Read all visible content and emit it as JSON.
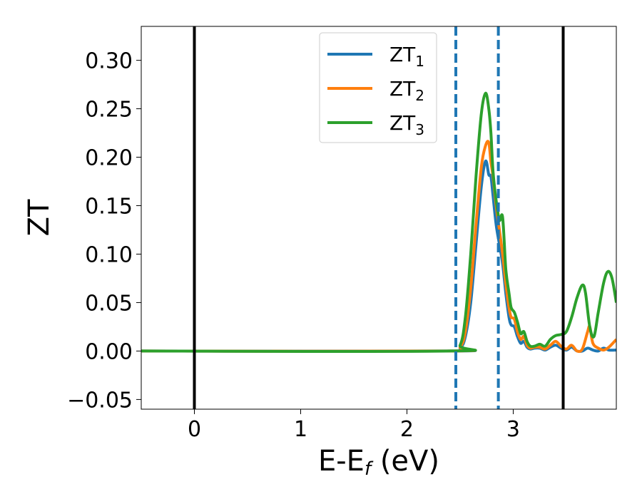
{
  "chart_data": {
    "type": "line",
    "xlabel": "E-E",
    "xlabel_sub": "f",
    "xlabel_unit": " (eV)",
    "ylabel": "ZT",
    "xlim": [
      -0.5,
      3.97
    ],
    "ylim": [
      -0.06,
      0.335
    ],
    "xticks": [
      0,
      1,
      2,
      3
    ],
    "xtick_labels": [
      "0",
      "1",
      "2",
      "3"
    ],
    "yticks": [
      -0.05,
      0.0,
      0.05,
      0.1,
      0.15,
      0.2,
      0.25,
      0.3
    ],
    "ytick_labels": [
      "−0.05",
      "0.00",
      "0.05",
      "0.10",
      "0.15",
      "0.20",
      "0.25",
      "0.30"
    ],
    "grid": false,
    "legend_position": "top-center",
    "vlines": [
      {
        "x": 0.0,
        "style": "solid",
        "color": "#000000"
      },
      {
        "x": 3.47,
        "style": "solid",
        "color": "#000000"
      },
      {
        "x": 2.46,
        "style": "dashed",
        "color": "#1f77b4"
      },
      {
        "x": 2.86,
        "style": "dashed",
        "color": "#1f77b4"
      }
    ],
    "series": [
      {
        "name": "ZT",
        "name_sub": "1",
        "color": "#1f77b4",
        "x": [
          -0.5,
          2.4,
          2.5,
          2.55,
          2.6,
          2.65,
          2.7,
          2.74,
          2.77,
          2.79,
          2.81,
          2.84,
          2.87,
          2.9,
          2.93,
          2.96,
          2.98,
          3.01,
          3.04,
          3.07,
          3.1,
          3.13,
          3.16,
          3.2,
          3.25,
          3.3,
          3.35,
          3.4,
          3.45,
          3.5,
          3.55,
          3.6,
          3.65,
          3.7,
          3.75,
          3.8,
          3.85,
          3.9,
          3.97
        ],
        "y": [
          0.0,
          0.0,
          0.003,
          0.015,
          0.05,
          0.11,
          0.17,
          0.196,
          0.182,
          0.18,
          0.16,
          0.13,
          0.11,
          0.09,
          0.06,
          0.035,
          0.027,
          0.025,
          0.015,
          0.008,
          0.01,
          0.004,
          0.002,
          0.003,
          0.003,
          0.001,
          0.004,
          0.006,
          0.003,
          0.001,
          0.004,
          0.0,
          0.0,
          0.003,
          0.001,
          0.0,
          0.003,
          0.001,
          0.001
        ]
      },
      {
        "name": "ZT",
        "name_sub": "2",
        "color": "#ff7f0e",
        "x": [
          -0.5,
          2.4,
          2.5,
          2.55,
          2.6,
          2.65,
          2.7,
          2.74,
          2.77,
          2.79,
          2.81,
          2.84,
          2.87,
          2.9,
          2.93,
          2.96,
          2.98,
          3.01,
          3.04,
          3.07,
          3.1,
          3.13,
          3.16,
          3.2,
          3.25,
          3.3,
          3.35,
          3.4,
          3.45,
          3.5,
          3.55,
          3.6,
          3.65,
          3.7,
          3.72,
          3.75,
          3.8,
          3.85,
          3.9,
          3.97
        ],
        "y": [
          0.0,
          0.0,
          0.004,
          0.02,
          0.065,
          0.13,
          0.19,
          0.212,
          0.215,
          0.195,
          0.18,
          0.15,
          0.125,
          0.1,
          0.07,
          0.045,
          0.035,
          0.033,
          0.02,
          0.012,
          0.015,
          0.006,
          0.003,
          0.004,
          0.004,
          0.002,
          0.006,
          0.01,
          0.005,
          0.002,
          0.006,
          0.0,
          0.002,
          0.02,
          0.025,
          0.008,
          0.003,
          0.001,
          0.004,
          0.012
        ]
      },
      {
        "name": "ZT",
        "name_sub": "3",
        "color": "#2ca02c",
        "x": [
          -0.5,
          2.4,
          2.5,
          2.55,
          2.6,
          2.65,
          2.7,
          2.74,
          2.77,
          2.79,
          2.81,
          2.84,
          2.87,
          2.9,
          2.93,
          2.96,
          2.98,
          3.01,
          3.04,
          3.07,
          3.1,
          3.13,
          3.16,
          3.2,
          3.25,
          3.3,
          3.35,
          3.4,
          3.45,
          3.5,
          3.55,
          3.6,
          3.65,
          3.68,
          3.72,
          3.76,
          3.8,
          3.85,
          3.89,
          3.93,
          3.97
        ],
        "y": [
          0.0,
          0.0,
          0.006,
          0.035,
          0.1,
          0.18,
          0.245,
          0.266,
          0.25,
          0.225,
          0.185,
          0.155,
          0.135,
          0.138,
          0.085,
          0.06,
          0.045,
          0.04,
          0.03,
          0.018,
          0.02,
          0.01,
          0.005,
          0.005,
          0.007,
          0.005,
          0.012,
          0.016,
          0.017,
          0.02,
          0.035,
          0.055,
          0.068,
          0.06,
          0.025,
          0.015,
          0.04,
          0.07,
          0.082,
          0.075,
          0.05
        ]
      }
    ]
  }
}
